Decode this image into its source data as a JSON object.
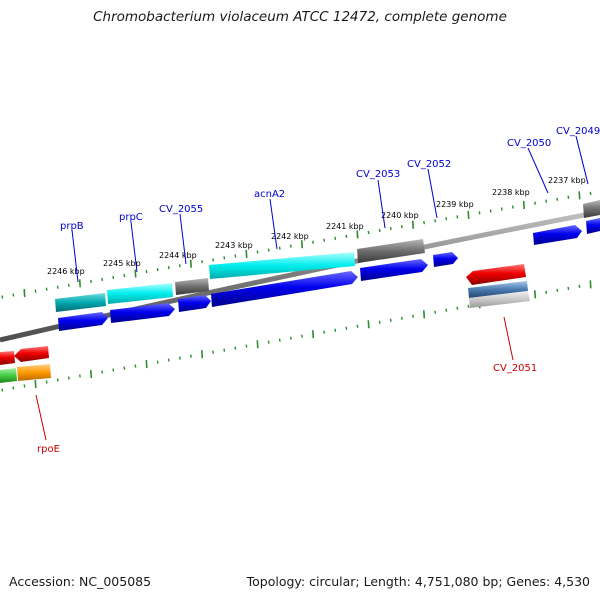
{
  "title": "Chromobacterium violaceum ATCC 12472, complete genome",
  "accession": "Accession: NC_005085",
  "summary": "Topology: circular; Length: 4,751,080 bp; Genes: 4,530",
  "colors": {
    "backbone": "#888888",
    "ticks": "#2e8b2e",
    "cds_forward": "#0000ee",
    "cds_reverse": "#ee0000",
    "label_forward": "#0000cc",
    "label_reverse": "#cc0000",
    "cog_cyan_light": "#00e8e8",
    "cog_cyan_dark": "#00a8b0",
    "cog_grey": "#707070",
    "cog_green": "#44cc44",
    "cog_orange": "#ff9900",
    "cog_steelblue": "#4a7ab0",
    "cog_lightgrey": "#c8c8c8"
  },
  "scale_labels": [
    "2246 kbp",
    "2245 kbp",
    "2244 kbp",
    "2243 kbp",
    "2242 kbp",
    "2241 kbp",
    "2240 kbp",
    "2239 kbp",
    "2238 kbp",
    "2237 kbp"
  ],
  "gene_labels": {
    "prpB": "prpB",
    "prpC": "prpC",
    "CV_2055": "CV_2055",
    "acnA2": "acnA2",
    "CV_2053": "CV_2053",
    "CV_2052": "CV_2052",
    "CV_2050": "CV_2050",
    "CV_2049": "CV_2049",
    "CV_2051": "CV_2051",
    "rpoE": "rpoE"
  }
}
